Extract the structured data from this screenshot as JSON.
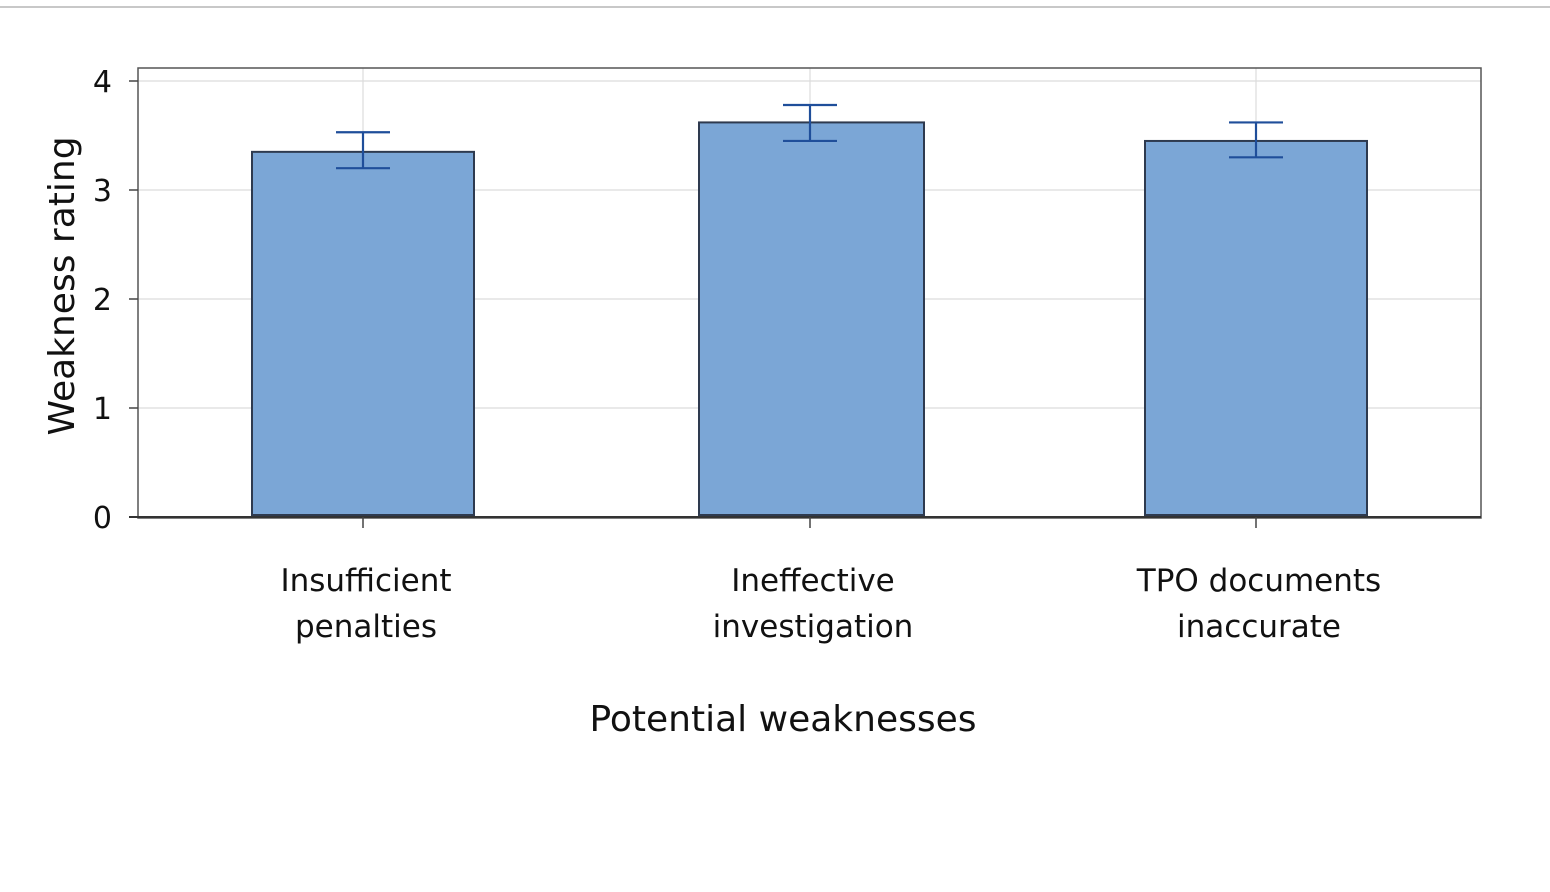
{
  "chart_data": {
    "type": "bar",
    "categories": [
      "Insufficient penalties",
      "Ineffective investigation",
      "TPO documents inaccurate"
    ],
    "category_lines": [
      [
        "Insufficient",
        "penalties"
      ],
      [
        "Ineffective",
        "investigation"
      ],
      [
        "TPO documents",
        "inaccurate"
      ]
    ],
    "values": [
      3.35,
      3.62,
      3.45
    ],
    "error_low": [
      3.2,
      3.45,
      3.3
    ],
    "error_high": [
      3.53,
      3.78,
      3.62
    ],
    "ylim": [
      0,
      4.1
    ],
    "yticks": [
      0,
      1,
      2,
      3,
      4
    ],
    "xlabel": "Potential weaknesses",
    "ylabel": "Weakness rating",
    "grid": true,
    "bar_color": "#7ba6d6",
    "bar_edge_color": "#2e3a4f",
    "error_color": "#1f4e9a",
    "grid_color": "#dcdcdc",
    "axis_color": "#444444"
  }
}
